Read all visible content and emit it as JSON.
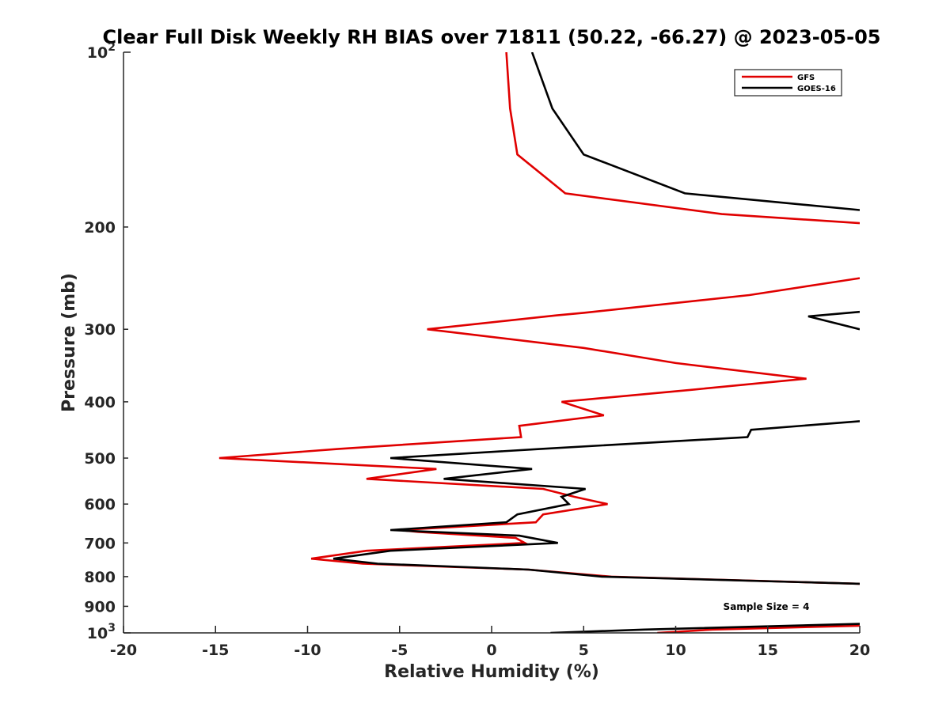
{
  "chart_data": {
    "type": "line",
    "title": "Clear Full Disk Weekly RH BIAS over 71811 (50.22, -66.27) @ 2023-05-05",
    "xlabel": "Relative Humidity (%)",
    "ylabel": "Pressure (mb)",
    "xlim": [
      -20,
      20
    ],
    "ylim": [
      1000,
      100
    ],
    "y_scale": "log",
    "y_reversed": true,
    "grid": false,
    "legend_position": "top-right",
    "x_ticks": [
      "-20",
      "-15",
      "-10",
      "-5",
      "0",
      "5",
      "10",
      "15",
      "20"
    ],
    "y_ticks": [
      {
        "value": 100,
        "base": "10",
        "exp": "2"
      },
      {
        "value": 200,
        "label": "200"
      },
      {
        "value": 300,
        "label": "300"
      },
      {
        "value": 400,
        "label": "400"
      },
      {
        "value": 500,
        "label": "500"
      },
      {
        "value": 600,
        "label": "600"
      },
      {
        "value": 700,
        "label": "700"
      },
      {
        "value": 800,
        "label": "800"
      },
      {
        "value": 900,
        "label": "900"
      },
      {
        "value": 1000,
        "base": "10",
        "exp": "3"
      }
    ],
    "annotation": "Sample Size = 4",
    "series": [
      {
        "name": "GFS",
        "color": "#e00000",
        "segments": [
          [
            [
              0.8,
              100
            ],
            [
              1.0,
              125
            ],
            [
              1.4,
              150
            ],
            [
              4.0,
              175
            ],
            [
              12.5,
              190
            ],
            [
              20,
              197
            ]
          ],
          [
            [
              20,
              245
            ],
            [
              14,
              262
            ],
            [
              5,
              281
            ],
            [
              3.5,
              284
            ],
            [
              -3.5,
              300
            ],
            [
              5,
              323
            ],
            [
              10,
              343
            ],
            [
              17.1,
              365
            ],
            [
              11,
              381
            ],
            [
              3.8,
              400
            ],
            [
              6.1,
              422
            ],
            [
              1.5,
              440
            ],
            [
              1.6,
              460
            ],
            [
              -8.3,
              482
            ],
            [
              -14.8,
              500
            ],
            [
              -3.0,
              522
            ],
            [
              -6.8,
              543
            ],
            [
              2.8,
              565
            ],
            [
              4.5,
              583
            ],
            [
              6.3,
              600
            ],
            [
              2.8,
              625
            ],
            [
              2.4,
              645
            ],
            [
              -5.0,
              665
            ],
            [
              -4.0,
              670
            ],
            [
              1.3,
              686
            ],
            [
              1.8,
              700
            ],
            [
              -6.8,
              722
            ],
            [
              -9.8,
              745
            ],
            [
              -7.0,
              760
            ],
            [
              2.0,
              778
            ],
            [
              6.5,
              800
            ],
            [
              20,
              823
            ]
          ],
          [
            [
              9.0,
              1000
            ],
            [
              12,
              987
            ],
            [
              20,
              972
            ]
          ]
        ]
      },
      {
        "name": "GOES-16",
        "color": "#000000",
        "segments": [
          [
            [
              2.2,
              100
            ],
            [
              3.3,
              125
            ],
            [
              5.0,
              150
            ],
            [
              10.5,
              175
            ],
            [
              20,
              187
            ]
          ],
          [
            [
              20,
              280
            ],
            [
              17.2,
              285
            ],
            [
              20,
              300
            ]
          ],
          [
            [
              20,
              432
            ],
            [
              14.1,
              447
            ],
            [
              13.9,
              460
            ],
            [
              2.7,
              482
            ],
            [
              -5.5,
              500
            ],
            [
              2.2,
              522
            ],
            [
              -2.6,
              543
            ],
            [
              5.1,
              565
            ],
            [
              3.8,
              583
            ],
            [
              4.2,
              600
            ],
            [
              1.4,
              625
            ],
            [
              0.8,
              645
            ],
            [
              -5.5,
              665
            ],
            [
              1.5,
              680
            ],
            [
              3.6,
              700
            ],
            [
              -5.5,
              722
            ],
            [
              -8.6,
              745
            ],
            [
              -6.2,
              760
            ],
            [
              2.0,
              778
            ],
            [
              6.0,
              800
            ],
            [
              20,
              823
            ]
          ],
          [
            [
              3.2,
              1000
            ],
            [
              8.3,
              987
            ],
            [
              20,
              965
            ]
          ]
        ]
      }
    ]
  }
}
